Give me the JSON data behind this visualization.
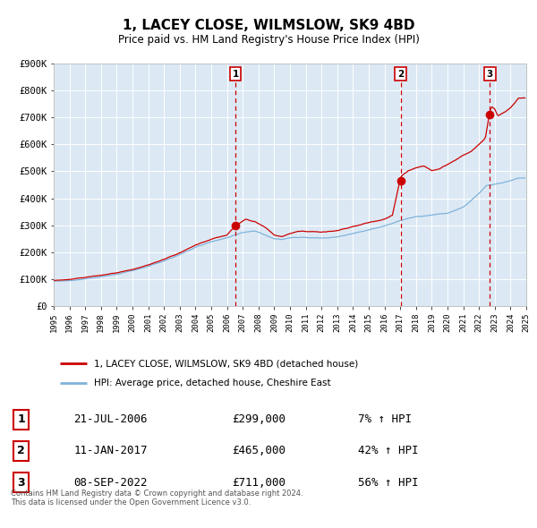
{
  "title": "1, LACEY CLOSE, WILMSLOW, SK9 4BD",
  "subtitle": "Price paid vs. HM Land Registry's House Price Index (HPI)",
  "sale_label": "1, LACEY CLOSE, WILMSLOW, SK9 4BD (detached house)",
  "hpi_label": "HPI: Average price, detached house, Cheshire East",
  "transactions": [
    {
      "num": 1,
      "date": "21-JUL-2006",
      "price": 299000,
      "pct": "7%",
      "dir": "↑"
    },
    {
      "num": 2,
      "date": "11-JAN-2017",
      "price": 465000,
      "pct": "42%",
      "dir": "↑"
    },
    {
      "num": 3,
      "date": "08-SEP-2022",
      "price": 711000,
      "pct": "56%",
      "dir": "↑"
    }
  ],
  "transaction_dates_decimal": [
    2006.547,
    2017.029,
    2022.689
  ],
  "transaction_prices": [
    299000,
    465000,
    711000
  ],
  "plot_bg_color": "#dce9f5",
  "grid_color": "#ffffff",
  "red_line_color": "#cc0000",
  "blue_line_color": "#7fb3d9",
  "dashed_line_color": "#cc0000",
  "marker_color": "#cc0000",
  "footer": "Contains HM Land Registry data © Crown copyright and database right 2024.\nThis data is licensed under the Open Government Licence v3.0.",
  "ylim": [
    0,
    900000
  ],
  "yticks": [
    0,
    100000,
    200000,
    300000,
    400000,
    500000,
    600000,
    700000,
    800000,
    900000
  ],
  "ytick_labels": [
    "£0",
    "£100K",
    "£200K",
    "£300K",
    "£400K",
    "£500K",
    "£600K",
    "£700K",
    "£800K",
    "£900K"
  ],
  "xlim_start": 1995,
  "xlim_end": 2025,
  "hpi_waypoints": [
    [
      1995.0,
      93000
    ],
    [
      1996.0,
      97000
    ],
    [
      1997.0,
      102000
    ],
    [
      1998.0,
      110000
    ],
    [
      1999.0,
      120000
    ],
    [
      2000.0,
      133000
    ],
    [
      2001.0,
      148000
    ],
    [
      2002.0,
      168000
    ],
    [
      2003.0,
      192000
    ],
    [
      2004.0,
      218000
    ],
    [
      2005.0,
      238000
    ],
    [
      2006.0,
      252000
    ],
    [
      2007.0,
      272000
    ],
    [
      2007.8,
      278000
    ],
    [
      2008.5,
      262000
    ],
    [
      2009.0,
      248000
    ],
    [
      2009.5,
      245000
    ],
    [
      2010.0,
      252000
    ],
    [
      2011.0,
      255000
    ],
    [
      2012.0,
      252000
    ],
    [
      2013.0,
      258000
    ],
    [
      2014.0,
      272000
    ],
    [
      2015.0,
      285000
    ],
    [
      2016.0,
      300000
    ],
    [
      2017.0,
      318000
    ],
    [
      2018.0,
      332000
    ],
    [
      2019.0,
      338000
    ],
    [
      2020.0,
      345000
    ],
    [
      2021.0,
      368000
    ],
    [
      2022.0,
      420000
    ],
    [
      2022.5,
      450000
    ],
    [
      2023.0,
      455000
    ],
    [
      2023.5,
      460000
    ],
    [
      2024.0,
      468000
    ],
    [
      2024.5,
      478000
    ]
  ],
  "red_waypoints": [
    [
      1995.0,
      96000
    ],
    [
      1996.0,
      100000
    ],
    [
      1997.0,
      106000
    ],
    [
      1998.0,
      114000
    ],
    [
      1999.0,
      125000
    ],
    [
      2000.0,
      138000
    ],
    [
      2001.0,
      155000
    ],
    [
      2002.0,
      175000
    ],
    [
      2003.0,
      200000
    ],
    [
      2004.0,
      228000
    ],
    [
      2005.0,
      248000
    ],
    [
      2006.0,
      265000
    ],
    [
      2006.547,
      299000
    ],
    [
      2007.2,
      322000
    ],
    [
      2007.8,
      310000
    ],
    [
      2008.5,
      285000
    ],
    [
      2009.0,
      258000
    ],
    [
      2009.5,
      252000
    ],
    [
      2010.0,
      262000
    ],
    [
      2010.5,
      270000
    ],
    [
      2011.0,
      268000
    ],
    [
      2012.0,
      265000
    ],
    [
      2013.0,
      272000
    ],
    [
      2014.0,
      285000
    ],
    [
      2015.0,
      298000
    ],
    [
      2016.0,
      312000
    ],
    [
      2016.5,
      325000
    ],
    [
      2017.029,
      465000
    ],
    [
      2017.5,
      488000
    ],
    [
      2018.0,
      502000
    ],
    [
      2018.5,
      508000
    ],
    [
      2019.0,
      492000
    ],
    [
      2019.5,
      498000
    ],
    [
      2020.0,
      515000
    ],
    [
      2020.5,
      530000
    ],
    [
      2021.0,
      548000
    ],
    [
      2021.5,
      562000
    ],
    [
      2022.0,
      590000
    ],
    [
      2022.4,
      612000
    ],
    [
      2022.689,
      711000
    ],
    [
      2022.8,
      730000
    ],
    [
      2023.0,
      720000
    ],
    [
      2023.2,
      695000
    ],
    [
      2023.5,
      705000
    ],
    [
      2023.8,
      715000
    ],
    [
      2024.0,
      725000
    ],
    [
      2024.3,
      745000
    ],
    [
      2024.5,
      760000
    ]
  ]
}
